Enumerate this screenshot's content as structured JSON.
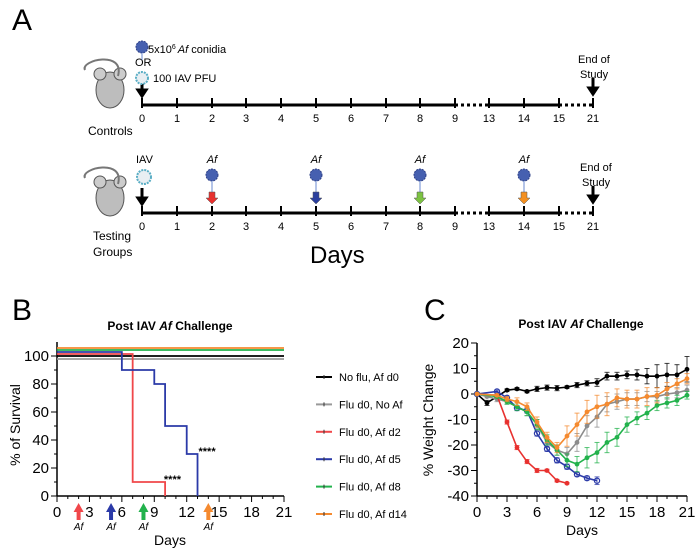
{
  "panel_a": {
    "label": "A",
    "controls_label": "Controls",
    "testing_label_1": "Testing",
    "testing_label_2": "Groups",
    "conidia_pre": "5x10",
    "conidia_sup": "6",
    "conidia_af": "Af",
    "conidia_post": " conidia",
    "or": "OR",
    "pfu": "100 IAV PFU",
    "iav": "IAV",
    "af": "Af",
    "end_1": "End of",
    "end_2": "Study",
    "days": "Days",
    "timeline_ticks": [
      "0",
      "1",
      "2",
      "3",
      "4",
      "5",
      "6",
      "7",
      "8",
      "9",
      "13",
      "14",
      "15",
      "21"
    ],
    "af_days": [
      "2",
      "5",
      "8",
      "14"
    ],
    "af_colors": [
      "#e8312f",
      "#2b3f9e",
      "#7cc242",
      "#f39021"
    ]
  },
  "chart_data": [
    {
      "panel": "B",
      "type": "line",
      "subtype": "survival-step",
      "title_pre": "Post IAV ",
      "title_af": "Af",
      "title_post": " Challenge",
      "xlabel": "Days",
      "ylabel": "% of Survival",
      "xlim": [
        0,
        21
      ],
      "ylim": [
        0,
        100
      ],
      "xticks": [
        "0",
        "3",
        "6",
        "9",
        "12",
        "15",
        "18",
        "21"
      ],
      "yticks": [
        "0",
        "20",
        "40",
        "60",
        "80",
        "100"
      ],
      "legend_position": "right",
      "series": [
        {
          "name": "No flu, Af d0",
          "color": "#000000",
          "offset": 0,
          "steps": [
            [
              0,
              100
            ],
            [
              21,
              100
            ]
          ]
        },
        {
          "name": "Flu d0, No Af",
          "color": "#999999",
          "offset": -3,
          "steps": [
            [
              0,
              100
            ],
            [
              21,
              100
            ]
          ]
        },
        {
          "name": "Flu d0, Af d2",
          "color": "#f0474a",
          "offset": 2,
          "steps": [
            [
              0,
              100
            ],
            [
              7,
              100
            ],
            [
              7,
              10
            ],
            [
              10,
              10
            ],
            [
              10,
              0
            ]
          ]
        },
        {
          "name": "Flu d0, Af d5",
          "color": "#2b3aa8",
          "offset": 4,
          "steps": [
            [
              0,
              100
            ],
            [
              6,
              100
            ],
            [
              6,
              90
            ],
            [
              9,
              90
            ],
            [
              9,
              80
            ],
            [
              10,
              80
            ],
            [
              10,
              50
            ],
            [
              12,
              50
            ],
            [
              12,
              30
            ],
            [
              13,
              30
            ],
            [
              13,
              0
            ]
          ]
        },
        {
          "name": "Flu d0, Af d8",
          "color": "#22b24c",
          "offset": 6,
          "steps": [
            [
              0,
              100
            ],
            [
              21,
              100
            ]
          ]
        },
        {
          "name": "Flu d0, Af d14",
          "color": "#f58a2f",
          "offset": 8,
          "steps": [
            [
              0,
              100
            ],
            [
              21,
              100
            ]
          ]
        }
      ],
      "annotations": [
        {
          "text": "****",
          "x": 11,
          "y": 12
        },
        {
          "text": "****",
          "x": 14.2,
          "y": 32
        }
      ],
      "af_arrows": [
        {
          "day": 2,
          "label": "Af",
          "color": "#f0474a"
        },
        {
          "day": 5,
          "label": "Af",
          "color": "#2b3aa8"
        },
        {
          "day": 8,
          "label": "Af",
          "color": "#22b24c"
        },
        {
          "day": 14,
          "label": "Af",
          "color": "#f58a2f"
        }
      ]
    },
    {
      "panel": "C",
      "type": "line",
      "title_pre": "Post IAV ",
      "title_af": "Af",
      "title_post": " Challenge",
      "xlabel": "Days",
      "ylabel": "% Weight Change",
      "xlim": [
        0,
        21
      ],
      "ylim": [
        -40,
        20
      ],
      "xticks": [
        "0",
        "3",
        "6",
        "9",
        "12",
        "15",
        "18",
        "21"
      ],
      "yticks": [
        "-40",
        "-30",
        "-20",
        "-10",
        "0",
        "10",
        "20"
      ],
      "series": [
        {
          "name": "No flu, Af d0",
          "color": "#000000",
          "x": [
            0,
            1,
            2,
            3,
            4,
            5,
            6,
            7,
            8,
            9,
            10,
            11,
            12,
            13,
            14,
            15,
            16,
            17,
            18,
            19,
            20,
            21
          ],
          "y": [
            0,
            -3.5,
            -1,
            1.5,
            2,
            1,
            2,
            2.5,
            2.3,
            2.7,
            3.5,
            4.2,
            4.5,
            7,
            7,
            7.5,
            7.5,
            7,
            7,
            7.5,
            7.5,
            9.7
          ],
          "err": [
            0,
            1,
            1,
            0.5,
            0.5,
            0.5,
            1,
            1,
            1,
            0.5,
            1,
            1,
            1.5,
            1.5,
            1.5,
            1.5,
            2,
            3,
            4.5,
            4.5,
            4,
            5
          ]
        },
        {
          "name": "Flu d0, No Af",
          "color": "#8c8c8c",
          "x": [
            0,
            1,
            2,
            3,
            4,
            5,
            6,
            7,
            8,
            9,
            10,
            11,
            12,
            13,
            14,
            15,
            16,
            17,
            18,
            19,
            20,
            21
          ],
          "y": [
            0,
            -1,
            -2,
            -3,
            -5,
            -7,
            -12,
            -19,
            -22,
            -23.5,
            -19,
            -12.5,
            -9,
            -4,
            -3,
            -2,
            -2,
            -1,
            -1,
            0,
            0.5,
            1.5
          ],
          "err": [
            0,
            0.5,
            1,
            1,
            1.5,
            1.5,
            2,
            2,
            2,
            2.5,
            3.5,
            4,
            4,
            3,
            3,
            2.5,
            2.5,
            2,
            2,
            2,
            2,
            2
          ]
        },
        {
          "name": "Flu d0, Af d2",
          "color": "#e8312f",
          "x": [
            0,
            2,
            3,
            4,
            5,
            6,
            7,
            8,
            9
          ],
          "y": [
            0,
            -0.5,
            -11,
            -21,
            -26.5,
            -30,
            -30,
            -34,
            -35
          ],
          "err": [
            0,
            0.5,
            0.8,
            0.8,
            0.8,
            0.8,
            0.5,
            0.5,
            0.3
          ]
        },
        {
          "name": "Flu d0, Af d5",
          "color": "#2b3aa8",
          "x": [
            0,
            2,
            3,
            4,
            5,
            6,
            7,
            8,
            9,
            10,
            11,
            12
          ],
          "y": [
            0,
            1,
            -1.5,
            -5.5,
            -6.5,
            -15.5,
            -21.5,
            -26,
            -28.5,
            -31.5,
            -33,
            -34
          ],
          "err": [
            0,
            0.5,
            0.5,
            1,
            1,
            1,
            1,
            1,
            1,
            0.8,
            0.8,
            1.5
          ]
        },
        {
          "name": "Flu d0, Af d8",
          "color": "#22b24c",
          "x": [
            0,
            2,
            3,
            4,
            5,
            6,
            7,
            8,
            9,
            10,
            11,
            12,
            13,
            14,
            15,
            16,
            17,
            18,
            19,
            20,
            21
          ],
          "y": [
            0,
            -1,
            -3,
            -5,
            -7,
            -12,
            -18,
            -22,
            -26,
            -27.5,
            -25,
            -23,
            -19,
            -17,
            -12,
            -9.5,
            -7.5,
            -4.5,
            -3.5,
            -2.5,
            -0.5
          ],
          "err": [
            0,
            0.5,
            1,
            1.5,
            1.5,
            2,
            2,
            2,
            2.5,
            3,
            4,
            4,
            4,
            3.5,
            3,
            2.5,
            2.5,
            2,
            2,
            2,
            1.5
          ]
        },
        {
          "name": "Flu d0, Af d14",
          "color": "#f58a2f",
          "x": [
            0,
            2,
            3,
            4,
            5,
            6,
            7,
            8,
            9,
            10,
            11,
            12,
            13,
            14,
            15,
            16,
            17,
            18,
            19,
            20,
            21
          ],
          "y": [
            0,
            -0.5,
            -2,
            -3,
            -5,
            -11,
            -17,
            -21,
            -16.5,
            -12,
            -7,
            -5,
            -4,
            -1.5,
            -2,
            -2,
            -1,
            -0.5,
            2,
            4,
            6
          ],
          "err": [
            0,
            0.5,
            1,
            1.5,
            1.5,
            2,
            2,
            2,
            4,
            4.5,
            4.5,
            4.5,
            4.5,
            3.5,
            3.5,
            3.5,
            3.5,
            3,
            2.5,
            2,
            2
          ]
        }
      ]
    }
  ],
  "panel_b_label": "B",
  "panel_c_label": "C"
}
